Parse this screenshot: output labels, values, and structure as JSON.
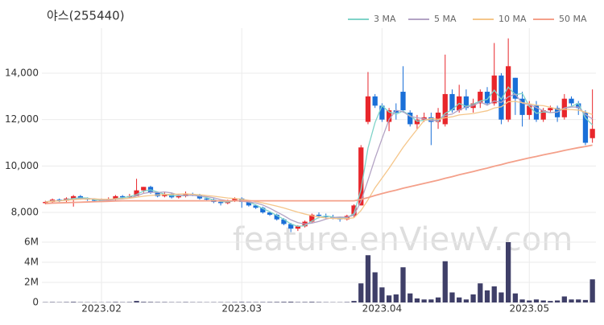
{
  "chart_data": {
    "type": "candlestick",
    "title": "야스(255440)",
    "watermark": "feature.enViewV.com",
    "categories": [
      null,
      null,
      null,
      null,
      null,
      null,
      null,
      null,
      "2023.02",
      null,
      null,
      null,
      null,
      null,
      null,
      null,
      null,
      null,
      null,
      null,
      null,
      null,
      null,
      null,
      null,
      null,
      null,
      null,
      "2023.03",
      null,
      null,
      null,
      null,
      null,
      null,
      null,
      null,
      null,
      null,
      null,
      null,
      null,
      null,
      null,
      null,
      null,
      null,
      null,
      "2023.04",
      null,
      null,
      null,
      null,
      null,
      null,
      null,
      null,
      null,
      null,
      null,
      null,
      null,
      null,
      null,
      null,
      null,
      null,
      null,
      null,
      "2023.05",
      null,
      null,
      null,
      null,
      null,
      null,
      null,
      null,
      null
    ],
    "up_color": "#e8262b",
    "down_color": "#1a6fd8",
    "grid": true,
    "ylim": [
      7100,
      15940
    ],
    "yticks": [
      {
        "value": 8000,
        "label": "8,000"
      },
      {
        "value": 10000,
        "label": "10,000"
      },
      {
        "value": 12000,
        "label": "12,000"
      },
      {
        "value": 14000,
        "label": "14,000"
      }
    ],
    "open": [
      8400,
      8450,
      8550,
      8500,
      8600,
      8700,
      8600,
      8550,
      8500,
      8520,
      8550,
      8700,
      8650,
      8700,
      8950,
      9100,
      8850,
      8700,
      8800,
      8650,
      8700,
      8800,
      8750,
      8600,
      8550,
      8450,
      8400,
      8500,
      8600,
      8450,
      8300,
      8200,
      8000,
      7900,
      7700,
      7500,
      7300,
      7400,
      7600,
      7900,
      7850,
      7800,
      7750,
      7700,
      7850,
      8300,
      11900,
      13000,
      12600,
      11900,
      12400,
      13200,
      12300,
      11800,
      12000,
      12100,
      11900,
      11800,
      13100,
      12400,
      13000,
      12500,
      12700,
      13200,
      12700,
      13900,
      12000,
      13800,
      12900,
      12200,
      12600,
      12000,
      12400,
      12500,
      12100,
      12900,
      12700,
      12300,
      11200
    ],
    "high": [
      8500,
      8600,
      8600,
      8650,
      8750,
      8750,
      8650,
      8600,
      8600,
      8650,
      8750,
      8750,
      8800,
      9450,
      9100,
      9150,
      8900,
      8900,
      8850,
      8800,
      8900,
      8850,
      8800,
      8650,
      8600,
      8500,
      8550,
      8650,
      8650,
      8500,
      8350,
      8250,
      8050,
      7950,
      7750,
      7550,
      7450,
      7650,
      7950,
      8000,
      7950,
      7900,
      7800,
      7900,
      8350,
      10900,
      14050,
      13100,
      12700,
      12500,
      12700,
      14300,
      12400,
      12200,
      12300,
      12300,
      12500,
      14800,
      13300,
      13500,
      13300,
      12900,
      13300,
      13400,
      15300,
      14000,
      15500,
      13800,
      13200,
      12800,
      12800,
      12500,
      12600,
      12600,
      13100,
      13000,
      12800,
      12400,
      13300
    ],
    "low": [
      8350,
      8400,
      8450,
      8450,
      8250,
      8550,
      8500,
      8450,
      8450,
      8500,
      8500,
      8600,
      8600,
      8700,
      8850,
      8800,
      8650,
      8650,
      8600,
      8600,
      8650,
      8700,
      8550,
      8500,
      8400,
      8300,
      8350,
      8450,
      8200,
      8250,
      8150,
      7950,
      7850,
      7650,
      7450,
      7150,
      7200,
      7350,
      7550,
      7750,
      7700,
      7700,
      7600,
      7650,
      7800,
      8300,
      11800,
      12500,
      11900,
      11500,
      12000,
      12300,
      11700,
      11600,
      11900,
      10900,
      11600,
      11700,
      12300,
      12300,
      12400,
      12300,
      12500,
      12600,
      12600,
      11800,
      11900,
      12200,
      11700,
      12000,
      11900,
      11900,
      12300,
      11900,
      12000,
      12600,
      12200,
      10900,
      11000
    ],
    "close": [
      8450,
      8550,
      8500,
      8600,
      8700,
      8600,
      8550,
      8500,
      8520,
      8550,
      8700,
      8650,
      8700,
      8950,
      9100,
      8850,
      8700,
      8800,
      8650,
      8700,
      8800,
      8750,
      8600,
      8550,
      8450,
      8400,
      8500,
      8600,
      8450,
      8300,
      8200,
      8000,
      7900,
      7700,
      7500,
      7300,
      7400,
      7600,
      7900,
      7850,
      7800,
      7750,
      7700,
      7850,
      8300,
      10800,
      13000,
      12600,
      12000,
      12400,
      12300,
      12400,
      11800,
      12000,
      12100,
      11900,
      12300,
      13100,
      12400,
      13000,
      12500,
      12700,
      13200,
      12700,
      13900,
      12000,
      14300,
      12900,
      12200,
      12600,
      12000,
      12400,
      12500,
      12100,
      12900,
      12700,
      12500,
      11000,
      11600
    ],
    "ma": [
      {
        "name": "3 MA",
        "color": "#7fd3c8",
        "values": [
          8450,
          8500,
          8500,
          8550,
          8600,
          8630,
          8620,
          8550,
          8510,
          8520,
          8590,
          8630,
          8680,
          8770,
          8920,
          8970,
          8880,
          8780,
          8720,
          8720,
          8720,
          8750,
          8720,
          8630,
          8530,
          8470,
          8450,
          8500,
          8520,
          8450,
          8320,
          8170,
          8030,
          7870,
          7700,
          7500,
          7400,
          7430,
          7630,
          7780,
          7850,
          7800,
          7750,
          7770,
          7950,
          8980,
          10770,
          11870,
          12600,
          12330,
          12230,
          12370,
          12170,
          11930,
          11970,
          12000,
          11930,
          12270,
          12430,
          12700,
          12570,
          12670,
          12800,
          12870,
          13270,
          12870,
          13400,
          13070,
          13130,
          12570,
          12270,
          12330,
          12300,
          12330,
          12500,
          12570,
          12700,
          12070,
          11770
        ]
      },
      {
        "name": "5 MA",
        "color": "#b3a3c4",
        "values": [
          8450,
          8500,
          8500,
          8530,
          8560,
          8590,
          8590,
          8590,
          8540,
          8520,
          8560,
          8580,
          8620,
          8710,
          8820,
          8870,
          8860,
          8880,
          8840,
          8740,
          8730,
          8740,
          8700,
          8680,
          8630,
          8550,
          8500,
          8500,
          8480,
          8450,
          8410,
          8320,
          8180,
          8020,
          7860,
          7680,
          7560,
          7500,
          7540,
          7610,
          7710,
          7780,
          7800,
          7790,
          7880,
          8480,
          9390,
          10330,
          11180,
          12000,
          12400,
          12340,
          12140,
          12080,
          12040,
          11960,
          11960,
          12180,
          12240,
          12420,
          12540,
          12600,
          12760,
          12620,
          12800,
          12740,
          12980,
          13100,
          12700,
          12650,
          12520,
          12380,
          12300,
          12320,
          12500,
          12540,
          12540,
          12220,
          12030
        ]
      },
      {
        "name": "10 MA",
        "color": "#f5c68a",
        "values": [
          8450,
          8480,
          8500,
          8520,
          8550,
          8570,
          8580,
          8580,
          8570,
          8570,
          8580,
          8590,
          8610,
          8650,
          8700,
          8730,
          8750,
          8770,
          8780,
          8790,
          8800,
          8780,
          8760,
          8730,
          8700,
          8660,
          8620,
          8600,
          8570,
          8520,
          8470,
          8410,
          8340,
          8270,
          8190,
          8100,
          8010,
          7930,
          7860,
          7800,
          7760,
          7740,
          7730,
          7730,
          7770,
          8080,
          8540,
          9060,
          9480,
          9900,
          10350,
          10800,
          11200,
          11580,
          11960,
          12050,
          12010,
          12080,
          12120,
          12200,
          12230,
          12260,
          12320,
          12380,
          12500,
          12550,
          12770,
          12780,
          12730,
          12680,
          12620,
          12600,
          12530,
          12450,
          12440,
          12430,
          12410,
          12320,
          12220
        ]
      },
      {
        "name": "50 MA",
        "color": "#f4a08a",
        "values": [
          8380,
          8400,
          8410,
          8420,
          8430,
          8440,
          8450,
          8460,
          8470,
          8480,
          8490,
          8500,
          8500,
          8500,
          8500,
          8500,
          8500,
          8500,
          8500,
          8500,
          8500,
          8500,
          8500,
          8500,
          8500,
          8500,
          8500,
          8500,
          8500,
          8500,
          8500,
          8500,
          8500,
          8500,
          8500,
          8500,
          8500,
          8500,
          8500,
          8500,
          8500,
          8500,
          8500,
          8500,
          8500,
          8560,
          8640,
          8730,
          8810,
          8890,
          8960,
          9040,
          9110,
          9180,
          9250,
          9320,
          9390,
          9470,
          9540,
          9620,
          9690,
          9760,
          9840,
          9910,
          9990,
          10060,
          10140,
          10210,
          10280,
          10350,
          10410,
          10480,
          10540,
          10600,
          10670,
          10730,
          10790,
          10840,
          10900
        ]
      }
    ],
    "volume": {
      "color": "#3f3f68",
      "ylim": [
        0,
        6240000
      ],
      "yticks": [
        0,
        {
          "value": 2000000,
          "label": "2M"
        },
        {
          "value": 4000000,
          "label": "4M"
        },
        {
          "value": 6000000,
          "label": "6M"
        }
      ],
      "values": [
        30000,
        40000,
        30000,
        40000,
        60000,
        30000,
        25000,
        25000,
        20000,
        30000,
        50000,
        30000,
        40000,
        150000,
        60000,
        50000,
        40000,
        40000,
        30000,
        30000,
        40000,
        30000,
        30000,
        25000,
        30000,
        30000,
        25000,
        40000,
        50000,
        40000,
        35000,
        40000,
        45000,
        50000,
        60000,
        70000,
        40000,
        45000,
        60000,
        40000,
        30000,
        25000,
        25000,
        40000,
        150000,
        1900000,
        4700000,
        3000000,
        1500000,
        700000,
        800000,
        3500000,
        900000,
        400000,
        300000,
        300000,
        500000,
        4100000,
        1000000,
        500000,
        300000,
        800000,
        1900000,
        1200000,
        1600000,
        1000000,
        6000000,
        900000,
        300000,
        200000,
        300000,
        200000,
        150000,
        200000,
        600000,
        300000,
        300000,
        250000,
        2300000
      ]
    }
  }
}
